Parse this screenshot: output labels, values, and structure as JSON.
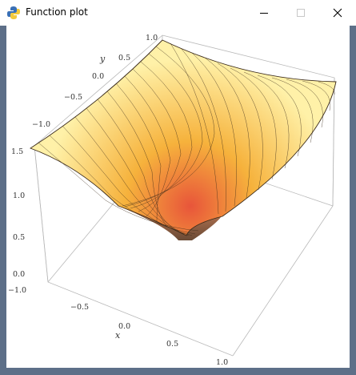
{
  "window": {
    "title": "Function plot",
    "icon": "python-icon",
    "controls": {
      "minimize": "minimize-icon",
      "maximize": "maximize-icon",
      "close": "close-icon"
    }
  },
  "plot": {
    "colors": {
      "low": "#e8553a",
      "mid": "#f6b23c",
      "high": "#fff1a8",
      "mesh": "#3a2a1a",
      "box": "#b9b9b9"
    },
    "y_ticks": [
      "1.0",
      "0.5",
      "0.0",
      "−0.5",
      "−1.0"
    ],
    "y_label": "y",
    "z_ticks": [
      "1.5",
      "1.0",
      "0.5",
      "0.0"
    ],
    "x_ticks": [
      "−1.0",
      "−0.5",
      "0.0",
      "0.5",
      "1.0"
    ],
    "x_label": "x"
  }
}
